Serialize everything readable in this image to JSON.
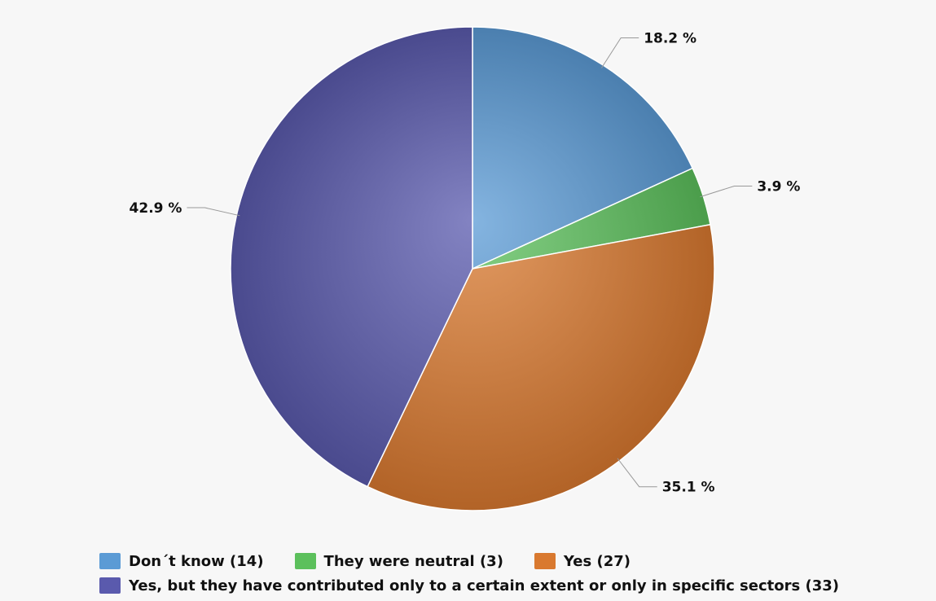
{
  "chart_data": {
    "type": "pie",
    "categories": [
      "Don´t know (14)",
      "They were neutral (3)",
      "Yes (27)",
      "Yes, but they have contributed only to a certain extent or only in specific sectors (33)"
    ],
    "counts": [
      14,
      3,
      27,
      33
    ],
    "percent_labels": [
      "18.2 %",
      "3.9 %",
      "35.1 %",
      "42.9 %"
    ],
    "colors": [
      "#5b9bd5",
      "#5cc05c",
      "#d9792f",
      "#5a5aad"
    ],
    "start_angle_deg": 0,
    "direction": "clockwise",
    "legend_position": "bottom"
  },
  "legend": {
    "items": [
      {
        "label": "Don´t know (14)",
        "color": "#5b9bd5"
      },
      {
        "label": "They were neutral (3)",
        "color": "#5cc05c"
      },
      {
        "label": "Yes (27)",
        "color": "#d9792f"
      },
      {
        "label": "Yes, but they have contributed only to a certain extent or only in specific sectors (33)",
        "color": "#5a5aad"
      }
    ]
  }
}
